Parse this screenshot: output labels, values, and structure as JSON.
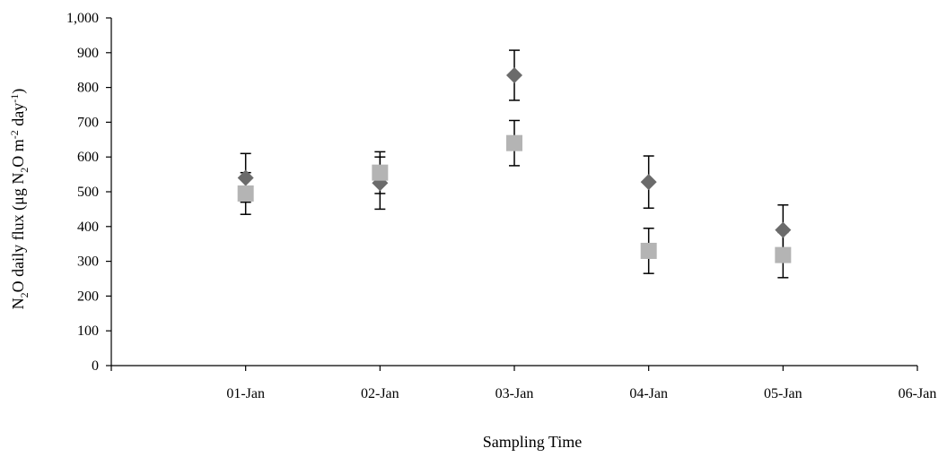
{
  "chart_data": {
    "type": "scatter",
    "title": "",
    "xlabel": "Sampling Time",
    "ylabel": {
      "parts": [
        "N",
        "2",
        "O daily flux (μg N",
        "2",
        "O m",
        "-2",
        " day",
        "-1",
        ")"
      ]
    },
    "x_ticks": [
      "",
      "01-Jan",
      "02-Jan",
      "03-Jan",
      "04-Jan",
      "05-Jan",
      "06-Jan"
    ],
    "ylim": [
      0,
      1000
    ],
    "y_ticks": [
      "0",
      "100",
      "200",
      "300",
      "400",
      "500",
      "600",
      "700",
      "800",
      "900",
      "1,000"
    ],
    "grid": false,
    "legend": "none",
    "series": [
      {
        "marker": "diamond",
        "color": "#6b6b6b",
        "x": [
          "01-Jan",
          "02-Jan",
          "03-Jan",
          "04-Jan",
          "05-Jan"
        ],
        "values": [
          540,
          525,
          835,
          528,
          390
        ],
        "error": [
          70,
          75,
          72,
          75,
          72
        ]
      },
      {
        "marker": "square",
        "color": "#b4b4b4",
        "x": [
          "01-Jan",
          "02-Jan",
          "03-Jan",
          "04-Jan",
          "05-Jan"
        ],
        "values": [
          495,
          555,
          640,
          330,
          318
        ],
        "error": [
          60,
          60,
          65,
          65,
          65
        ]
      }
    ]
  }
}
